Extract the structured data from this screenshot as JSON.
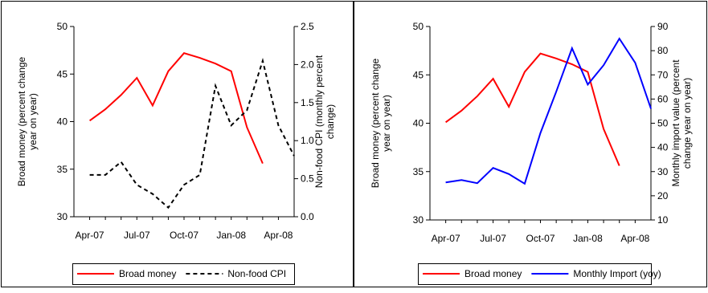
{
  "chart_data": [
    {
      "type": "line",
      "x_ticks": [
        "Apr-07",
        "Jul-07",
        "Oct-07",
        "Jan-08",
        "Apr-08"
      ],
      "x": [
        "May-07",
        "Jun-07",
        "Jul-07",
        "Aug-07",
        "Sep-07",
        "Oct-07",
        "Nov-07",
        "Dec-07",
        "Jan-08",
        "Feb-08",
        "Mar-08",
        "Apr-08",
        "May-08"
      ],
      "ylabel": "Broad money (percent change year on year)",
      "ylim": [
        30,
        50
      ],
      "yticks": [
        "30",
        "35",
        "40",
        "45",
        "50"
      ],
      "y2label": "Non-food CPI (monthly percent change)",
      "y2lim": [
        0,
        2.5
      ],
      "y2ticks": [
        "0.0",
        "0.5",
        "1.0",
        "1.5",
        "2.0",
        "2.5"
      ],
      "series": [
        {
          "name": "Broad money",
          "axis": "left",
          "color": "#ff0000",
          "style": "solid",
          "points": [
            [
              "Apr-07",
              40.1
            ],
            [
              "May-07",
              41.3
            ],
            [
              "Jun-07",
              42.8
            ],
            [
              "Jul-07",
              44.6
            ],
            [
              "Aug-07",
              41.7
            ],
            [
              "Sep-07",
              45.3
            ],
            [
              "Oct-07",
              47.2
            ],
            [
              "Nov-07",
              46.7
            ],
            [
              "Dec-07",
              46.1
            ],
            [
              "Jan-08",
              45.3
            ],
            [
              "Feb-08",
              39.4
            ],
            [
              "Mar-08",
              35.6
            ]
          ]
        },
        {
          "name": "Non-food CPI",
          "axis": "right",
          "color": "#000000",
          "style": "dashed",
          "points": [
            [
              "Apr-07",
              0.55
            ],
            [
              "May-07",
              0.55
            ],
            [
              "Jun-07",
              0.72
            ],
            [
              "Jul-07",
              0.42
            ],
            [
              "Aug-07",
              0.3
            ],
            [
              "Sep-07",
              0.12
            ],
            [
              "Oct-07",
              0.42
            ],
            [
              "Nov-07",
              0.55
            ],
            [
              "Dec-07",
              1.72
            ],
            [
              "Jan-08",
              1.2
            ],
            [
              "Feb-08",
              1.4
            ],
            [
              "Mar-08",
              2.05
            ],
            [
              "Apr-08",
              1.2
            ],
            [
              "May-08",
              0.8
            ]
          ]
        }
      ],
      "legend": "bottom"
    },
    {
      "type": "line",
      "x_ticks": [
        "Apr-07",
        "Jul-07",
        "Oct-07",
        "Jan-08",
        "Apr-08"
      ],
      "ylabel": "Broad money (percent change year on year)",
      "ylim": [
        30,
        50
      ],
      "yticks": [
        "30",
        "35",
        "40",
        "45",
        "50"
      ],
      "y2label": "Monthly import value (percent change year on year)",
      "y2lim": [
        10,
        90
      ],
      "y2ticks": [
        "10",
        "20",
        "30",
        "40",
        "50",
        "60",
        "70",
        "80",
        "90"
      ],
      "series": [
        {
          "name": "Broad money",
          "axis": "left",
          "color": "#ff0000",
          "style": "solid",
          "points": [
            [
              "Apr-07",
              40.1
            ],
            [
              "May-07",
              41.3
            ],
            [
              "Jun-07",
              42.8
            ],
            [
              "Jul-07",
              44.6
            ],
            [
              "Aug-07",
              41.7
            ],
            [
              "Sep-07",
              45.3
            ],
            [
              "Oct-07",
              47.2
            ],
            [
              "Nov-07",
              46.7
            ],
            [
              "Dec-07",
              46.1
            ],
            [
              "Jan-08",
              45.3
            ],
            [
              "Feb-08",
              39.4
            ],
            [
              "Mar-08",
              35.6
            ]
          ]
        },
        {
          "name": "Monthly Import (yoy)",
          "axis": "right",
          "color": "#0000ff",
          "style": "solid",
          "points": [
            [
              "Apr-07",
              25.5
            ],
            [
              "May-07",
              26.5
            ],
            [
              "Jun-07",
              25.2
            ],
            [
              "Jul-07",
              31.5
            ],
            [
              "Aug-07",
              29
            ],
            [
              "Sep-07",
              25
            ],
            [
              "Oct-07",
              46
            ],
            [
              "Nov-07",
              63
            ],
            [
              "Dec-07",
              81
            ],
            [
              "Jan-08",
              66
            ],
            [
              "Feb-08",
              74
            ],
            [
              "Mar-08",
              85
            ],
            [
              "Apr-08",
              75
            ],
            [
              "May-08",
              56
            ]
          ]
        }
      ],
      "legend": "bottom"
    }
  ]
}
